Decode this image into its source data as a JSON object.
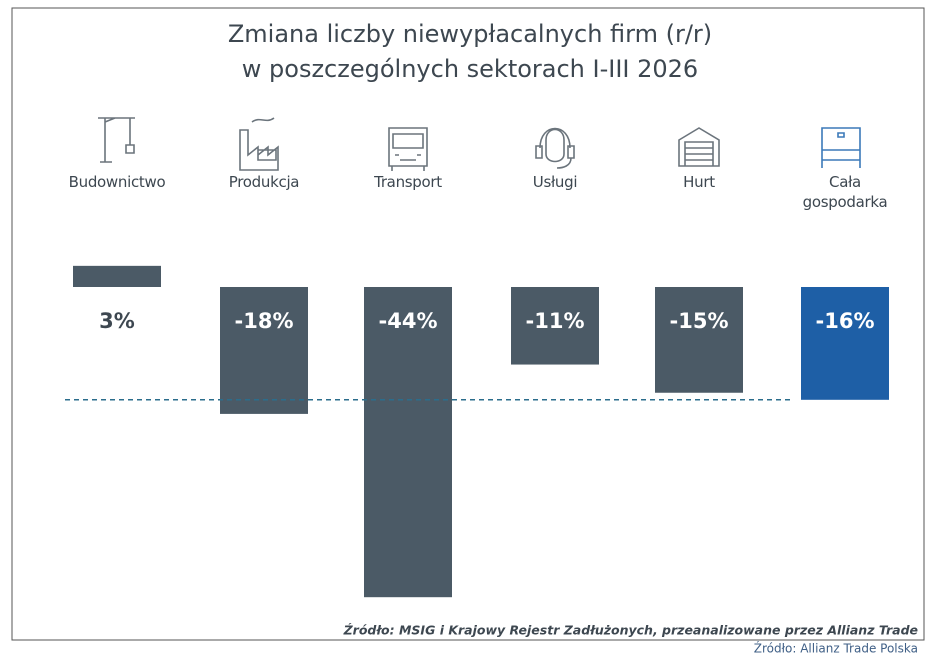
{
  "chart_data": {
    "type": "bar",
    "title": [
      "Zmiana liczby niewypłacalnych firm (r/r)",
      "w poszczególnych sektorach I-III 2026"
    ],
    "categories": [
      "Budownictwo",
      "Produkcja",
      "Transport",
      "Usługi",
      "Hurt",
      "Cała gospodarka"
    ],
    "values": [
      3,
      -18,
      -44,
      -11,
      -15,
      -16
    ],
    "value_labels": [
      "3%",
      "-18%",
      "-44%",
      "-11%",
      "-15%",
      "-16%"
    ],
    "colors": [
      "#4b5a66",
      "#4b5a66",
      "#4b5a66",
      "#4b5a66",
      "#4b5a66",
      "#1e5fa6"
    ],
    "reference_line_color": "#2b6d8c",
    "source": "Źródło: MSIG i Krajowy Rejestr Zadłużonych, przeanalizowane przez Allianz Trade",
    "footer": "Źródło: Allianz Trade Polska"
  }
}
